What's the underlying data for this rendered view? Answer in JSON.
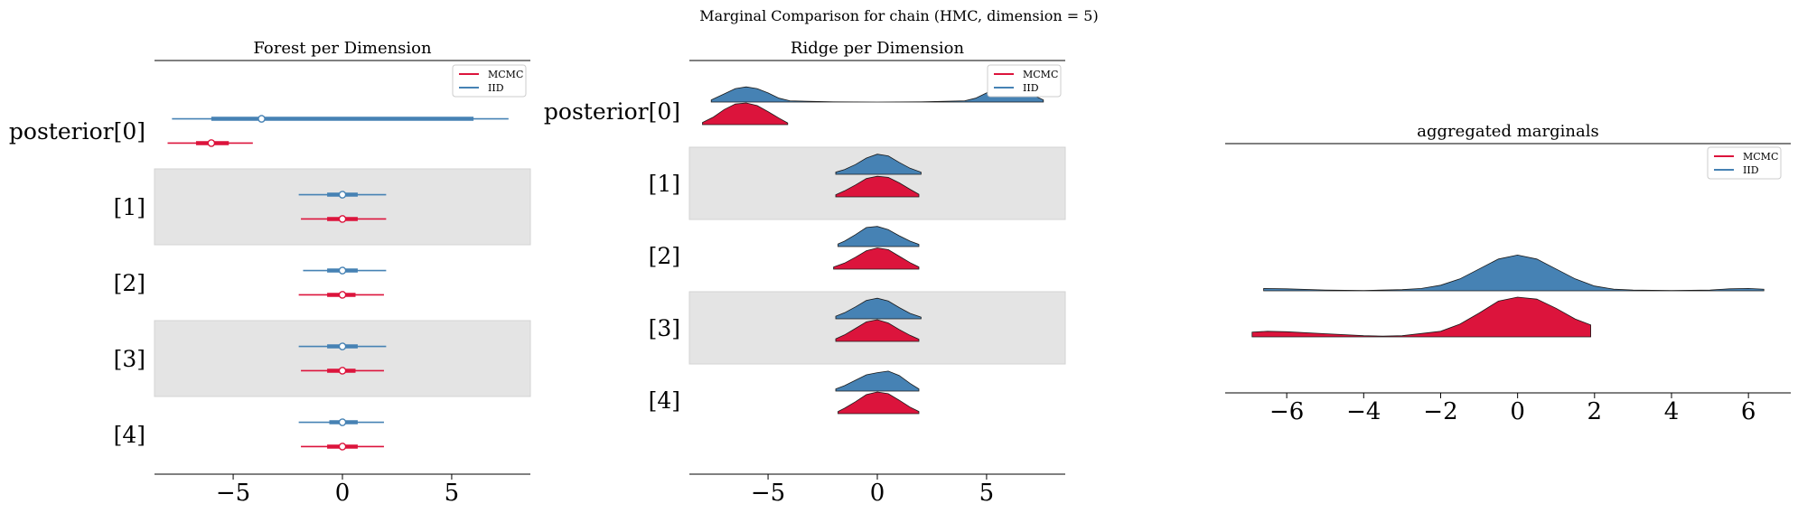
{
  "suptitle": "Marginal Comparison for chain (HMC, dimension = 5)",
  "colors": {
    "mcmc": "#dc143c",
    "iid": "#4682b4",
    "band": "#e4e4e4",
    "axis": "#000000"
  },
  "legend": {
    "mcmc": "MCMC",
    "iid": "IID"
  },
  "chart_data": [
    {
      "type": "forest",
      "title": "Forest per Dimension",
      "row_labels": [
        "posterior[0]",
        "[1]",
        "[2]",
        "[3]",
        "[4]"
      ],
      "xlim": [
        -8.6,
        8.6
      ],
      "xticks": [
        -5,
        0,
        5
      ],
      "xtick_labels": [
        "−5",
        "0",
        "5"
      ],
      "grid": false,
      "legend_position": "top-right",
      "series": [
        {
          "name": "IID",
          "rows": [
            {
              "lo": -7.8,
              "q25": -6.0,
              "mid": -3.7,
              "q75": 6.0,
              "hi": 7.6
            },
            {
              "lo": -2.0,
              "q25": -0.7,
              "mid": 0.0,
              "q75": 0.7,
              "hi": 2.0
            },
            {
              "lo": -1.8,
              "q25": -0.7,
              "mid": 0.0,
              "q75": 0.7,
              "hi": 2.0
            },
            {
              "lo": -2.0,
              "q25": -0.7,
              "mid": 0.0,
              "q75": 0.7,
              "hi": 2.0
            },
            {
              "lo": -2.0,
              "q25": -0.6,
              "mid": 0.0,
              "q75": 0.7,
              "hi": 1.9
            }
          ]
        },
        {
          "name": "MCMC",
          "rows": [
            {
              "lo": -8.0,
              "q25": -6.7,
              "mid": -6.0,
              "q75": -5.2,
              "hi": -4.1
            },
            {
              "lo": -1.9,
              "q25": -0.7,
              "mid": 0.0,
              "q75": 0.7,
              "hi": 2.0
            },
            {
              "lo": -2.0,
              "q25": -0.7,
              "mid": 0.0,
              "q75": 0.6,
              "hi": 1.9
            },
            {
              "lo": -1.9,
              "q25": -0.7,
              "mid": 0.0,
              "q75": 0.6,
              "hi": 1.9
            },
            {
              "lo": -1.9,
              "q25": -0.7,
              "mid": 0.0,
              "q75": 0.7,
              "hi": 1.9
            }
          ]
        }
      ]
    },
    {
      "type": "ridge",
      "title": "Ridge per Dimension",
      "row_labels": [
        "posterior[0]",
        "[1]",
        "[2]",
        "[3]",
        "[4]"
      ],
      "xlim": [
        -8.6,
        8.6
      ],
      "xticks": [
        -5,
        0,
        5
      ],
      "xtick_labels": [
        "−5",
        "0",
        "5"
      ],
      "grid": false,
      "legend_position": "top-right",
      "series": [
        {
          "name": "IID",
          "rows": [
            {
              "x": [
                -7.6,
                -7.0,
                -6.5,
                -6.0,
                -5.5,
                -5.0,
                -4.5,
                -4.0,
                -2.0,
                0.0,
                2.0,
                4.0,
                4.5,
                5.0,
                5.5,
                6.0,
                6.5,
                7.0,
                7.6
              ],
              "y": [
                0.1,
                0.38,
                0.62,
                0.7,
                0.62,
                0.42,
                0.18,
                0.06,
                0.01,
                0.0,
                0.01,
                0.06,
                0.18,
                0.42,
                0.62,
                0.7,
                0.62,
                0.38,
                0.1
              ]
            },
            {
              "x": [
                -1.9,
                -1.5,
                -1.0,
                -0.5,
                0.0,
                0.5,
                1.0,
                1.5,
                2.0
              ],
              "y": [
                0.1,
                0.22,
                0.45,
                0.75,
                0.93,
                0.85,
                0.55,
                0.28,
                0.1
              ]
            },
            {
              "x": [
                -1.8,
                -1.5,
                -1.0,
                -0.5,
                0.0,
                0.5,
                1.0,
                1.5,
                1.9
              ],
              "y": [
                0.12,
                0.25,
                0.55,
                0.88,
                0.93,
                0.78,
                0.5,
                0.25,
                0.1
              ]
            },
            {
              "x": [
                -1.9,
                -1.5,
                -1.0,
                -0.5,
                0.0,
                0.5,
                1.0,
                1.5,
                2.0
              ],
              "y": [
                0.12,
                0.28,
                0.55,
                0.85,
                0.95,
                0.82,
                0.52,
                0.25,
                0.08
              ]
            },
            {
              "x": [
                -1.9,
                -1.5,
                -1.0,
                -0.5,
                0.0,
                0.5,
                1.0,
                1.5,
                1.9
              ],
              "y": [
                0.1,
                0.25,
                0.5,
                0.75,
                0.85,
                0.92,
                0.72,
                0.35,
                0.1
              ]
            }
          ]
        },
        {
          "name": "MCMC",
          "rows": [
            {
              "x": [
                -8.0,
                -7.5,
                -7.0,
                -6.5,
                -6.0,
                -5.5,
                -5.0,
                -4.5,
                -4.1
              ],
              "y": [
                0.1,
                0.35,
                0.7,
                0.95,
                1.0,
                0.88,
                0.6,
                0.3,
                0.08
              ]
            },
            {
              "x": [
                -1.9,
                -1.5,
                -1.0,
                -0.5,
                0.0,
                0.5,
                1.0,
                1.5,
                1.9
              ],
              "y": [
                0.1,
                0.28,
                0.55,
                0.85,
                0.95,
                0.9,
                0.65,
                0.35,
                0.12
              ]
            },
            {
              "x": [
                -2.0,
                -1.5,
                -1.0,
                -0.5,
                0.0,
                0.5,
                1.0,
                1.5,
                1.9
              ],
              "y": [
                0.1,
                0.28,
                0.55,
                0.85,
                0.98,
                0.9,
                0.6,
                0.3,
                0.1
              ]
            },
            {
              "x": [
                -1.9,
                -1.5,
                -1.0,
                -0.5,
                0.0,
                0.5,
                1.0,
                1.5,
                1.9
              ],
              "y": [
                0.12,
                0.3,
                0.6,
                0.9,
                1.0,
                0.85,
                0.55,
                0.28,
                0.1
              ]
            },
            {
              "x": [
                -1.8,
                -1.5,
                -1.0,
                -0.5,
                0.0,
                0.5,
                1.0,
                1.5,
                1.9
              ],
              "y": [
                0.1,
                0.25,
                0.55,
                0.88,
                1.0,
                0.92,
                0.62,
                0.3,
                0.1
              ]
            }
          ]
        }
      ]
    },
    {
      "type": "ridge",
      "title": "aggregated marginals",
      "row_labels": [],
      "xlim": [
        -7.6,
        7.1
      ],
      "xticks": [
        -6,
        -4,
        -2,
        0,
        2,
        4,
        6
      ],
      "xtick_labels": [
        "−6",
        "−4",
        "−2",
        "0",
        "2",
        "4",
        "6"
      ],
      "grid": false,
      "legend_position": "top-right",
      "series": [
        {
          "name": "IID",
          "rows": [
            {
              "x": [
                -6.6,
                -6.0,
                -5.0,
                -4.0,
                -3.0,
                -2.5,
                -2.0,
                -1.5,
                -1.0,
                -0.5,
                0.0,
                0.5,
                1.0,
                1.5,
                2.0,
                2.5,
                3.0,
                4.0,
                5.0,
                5.5,
                6.0,
                6.4
              ],
              "y": [
                0.06,
                0.05,
                0.02,
                0.01,
                0.03,
                0.06,
                0.14,
                0.3,
                0.55,
                0.8,
                0.9,
                0.8,
                0.55,
                0.3,
                0.12,
                0.04,
                0.02,
                0.01,
                0.02,
                0.05,
                0.06,
                0.04
              ]
            }
          ]
        },
        {
          "name": "MCMC",
          "rows": [
            {
              "x": [
                -6.9,
                -6.5,
                -6.0,
                -5.0,
                -4.0,
                -3.5,
                -3.0,
                -2.0,
                -1.5,
                -1.0,
                -0.5,
                0.0,
                0.5,
                1.0,
                1.5,
                1.9
              ],
              "y": [
                0.12,
                0.14,
                0.13,
                0.08,
                0.03,
                0.02,
                0.03,
                0.14,
                0.32,
                0.6,
                0.9,
                1.0,
                0.95,
                0.72,
                0.45,
                0.3
              ]
            }
          ]
        }
      ]
    }
  ]
}
